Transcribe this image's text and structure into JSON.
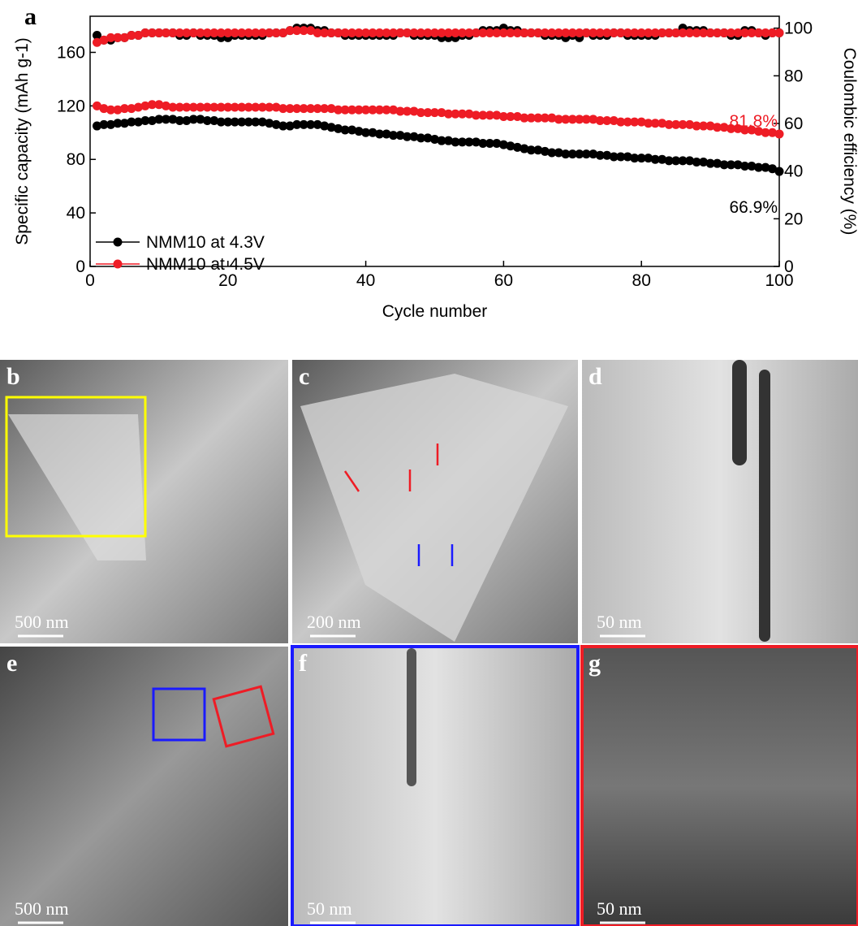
{
  "chart_data": {
    "type": "line",
    "panel_label": "a",
    "xlabel": "Cycle number",
    "ylabel": "Specific capacity (mAh g-1)",
    "y2label": "Coulombic efficiency (%)",
    "xlim": [
      0,
      100
    ],
    "xticks": [
      0,
      20,
      40,
      60,
      80,
      100
    ],
    "ylim": [
      0,
      187
    ],
    "yticks": [
      0,
      40,
      80,
      120,
      160
    ],
    "y2lim": [
      0,
      105
    ],
    "y2ticks": [
      0,
      20,
      40,
      60,
      80,
      100
    ],
    "x": [
      1,
      2,
      3,
      4,
      5,
      6,
      7,
      8,
      9,
      10,
      11,
      12,
      13,
      14,
      15,
      16,
      17,
      18,
      19,
      20,
      21,
      22,
      23,
      24,
      25,
      26,
      27,
      28,
      29,
      30,
      31,
      32,
      33,
      34,
      35,
      36,
      37,
      38,
      39,
      40,
      41,
      42,
      43,
      44,
      45,
      46,
      47,
      48,
      49,
      50,
      51,
      52,
      53,
      54,
      55,
      56,
      57,
      58,
      59,
      60,
      61,
      62,
      63,
      64,
      65,
      66,
      67,
      68,
      69,
      70,
      71,
      72,
      73,
      74,
      75,
      76,
      77,
      78,
      79,
      80,
      81,
      82,
      83,
      84,
      85,
      86,
      87,
      88,
      89,
      90,
      91,
      92,
      93,
      94,
      95,
      96,
      97,
      98,
      99,
      100
    ],
    "series": [
      {
        "name": "NMM10 at 4.3V",
        "color": "#000000",
        "values": [
          105,
          106,
          106,
          107,
          107,
          108,
          108,
          109,
          109,
          110,
          110,
          110,
          109,
          109,
          110,
          110,
          109,
          109,
          108,
          108,
          108,
          108,
          108,
          108,
          108,
          107,
          106,
          105,
          105,
          106,
          106,
          106,
          106,
          105,
          104,
          103,
          102,
          102,
          101,
          100,
          100,
          99,
          99,
          98,
          98,
          97,
          97,
          96,
          96,
          95,
          94,
          94,
          93,
          93,
          93,
          93,
          92,
          92,
          92,
          91,
          90,
          89,
          88,
          87,
          87,
          86,
          85,
          85,
          84,
          84,
          84,
          84,
          84,
          83,
          83,
          82,
          82,
          82,
          81,
          81,
          81,
          80,
          80,
          79,
          79,
          79,
          79,
          78,
          78,
          77,
          77,
          76,
          76,
          76,
          75,
          75,
          74,
          74,
          73,
          71
        ]
      },
      {
        "name": "NMM10 at 4.5V",
        "color": "#ee1c25",
        "values": [
          120,
          118,
          117,
          117,
          118,
          118,
          119,
          120,
          121,
          121,
          120,
          119,
          119,
          119,
          119,
          119,
          119,
          119,
          119,
          119,
          119,
          119,
          119,
          119,
          119,
          119,
          119,
          118,
          118,
          118,
          118,
          118,
          118,
          118,
          118,
          117,
          117,
          117,
          117,
          117,
          117,
          117,
          117,
          117,
          116,
          116,
          116,
          115,
          115,
          115,
          115,
          114,
          114,
          114,
          114,
          113,
          113,
          113,
          113,
          112,
          112,
          112,
          111,
          111,
          111,
          111,
          111,
          110,
          110,
          110,
          110,
          110,
          110,
          109,
          109,
          109,
          108,
          108,
          108,
          108,
          107,
          107,
          107,
          106,
          106,
          106,
          106,
          105,
          105,
          105,
          104,
          104,
          103,
          103,
          102,
          102,
          101,
          100,
          100,
          99
        ]
      },
      {
        "color": "#000000",
        "axis": "y2",
        "values": [
          97,
          95,
          95,
          96,
          96,
          97,
          97,
          98,
          98,
          98,
          98,
          98,
          97,
          97,
          98,
          97,
          97,
          97,
          96,
          96,
          97,
          97,
          97,
          97,
          97,
          98,
          98,
          98,
          99,
          100,
          100,
          100,
          99,
          99,
          98,
          98,
          97,
          97,
          97,
          97,
          97,
          97,
          97,
          97,
          98,
          98,
          97,
          97,
          97,
          97,
          96,
          96,
          96,
          97,
          97,
          98,
          99,
          99,
          99,
          100,
          99,
          99,
          98,
          98,
          98,
          97,
          97,
          97,
          96,
          97,
          96,
          98,
          97,
          97,
          97,
          98,
          98,
          97,
          97,
          97,
          97,
          97,
          98,
          98,
          98,
          100,
          99,
          99,
          99,
          98,
          98,
          98,
          97,
          97,
          99,
          99,
          98,
          97,
          98,
          98
        ]
      },
      {
        "color": "#ee1c25",
        "axis": "y2",
        "values": [
          94,
          95,
          96,
          96,
          96,
          97,
          97,
          98,
          98,
          98,
          98,
          98,
          98,
          98,
          98,
          98,
          98,
          98,
          98,
          98,
          98,
          98,
          98,
          98,
          98,
          98,
          98,
          98,
          99,
          99,
          99,
          99,
          98,
          98,
          98,
          98,
          98,
          98,
          98,
          98,
          98,
          98,
          98,
          98,
          98,
          98,
          98,
          98,
          98,
          98,
          98,
          98,
          98,
          98,
          98,
          98,
          98,
          98,
          98,
          98,
          98,
          98,
          98,
          98,
          98,
          98,
          98,
          98,
          98,
          98,
          98,
          98,
          98,
          98,
          98,
          98,
          98,
          98,
          98,
          98,
          98,
          98,
          98,
          98,
          98,
          98,
          98,
          98,
          98,
          98,
          98,
          98,
          98,
          98,
          98,
          98,
          98,
          98,
          98,
          98
        ]
      }
    ],
    "annotations": [
      {
        "text": "81.8%",
        "color": "#ee1c25"
      },
      {
        "text": "66.9%",
        "color": "#000000"
      }
    ]
  },
  "panels": [
    {
      "label": "b",
      "scale_bar": "500 nm"
    },
    {
      "label": "c",
      "scale_bar": "200 nm"
    },
    {
      "label": "d",
      "scale_bar": "50 nm"
    },
    {
      "label": "e",
      "scale_bar": "500 nm"
    },
    {
      "label": "f",
      "scale_bar": "50 nm"
    },
    {
      "label": "g",
      "scale_bar": "50 nm"
    }
  ]
}
